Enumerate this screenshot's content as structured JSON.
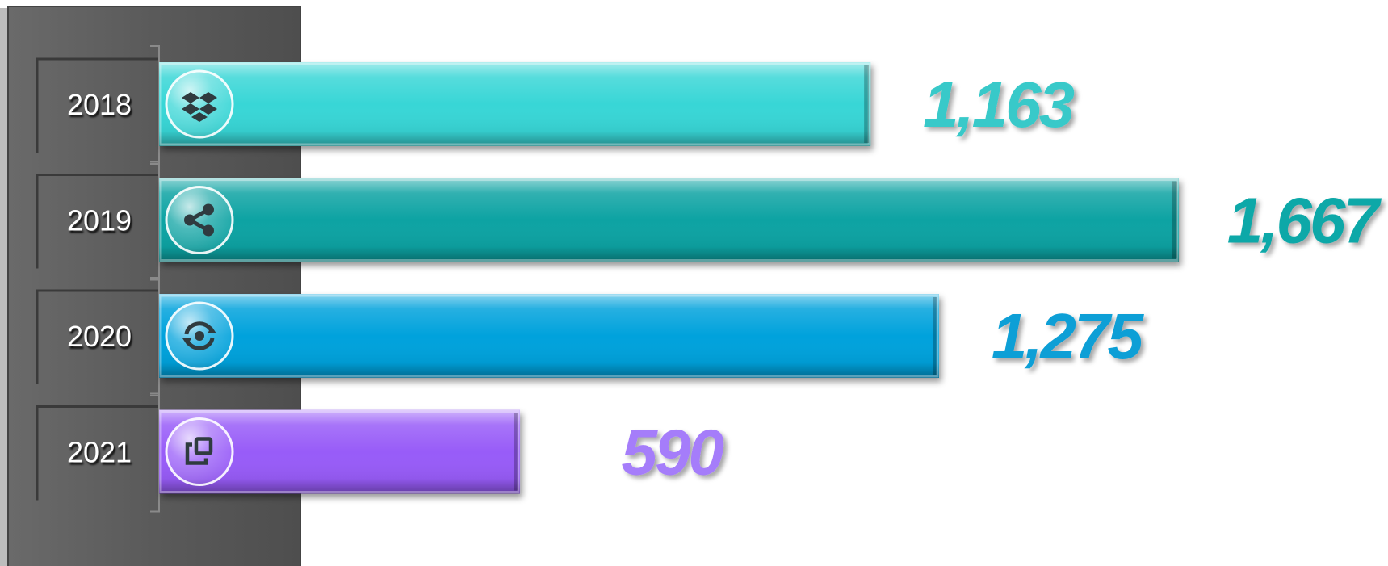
{
  "chart_data": {
    "type": "bar",
    "orientation": "horizontal",
    "title": "",
    "xlabel": "",
    "ylabel": "",
    "categories": [
      "2018",
      "2019",
      "2020",
      "2021"
    ],
    "values": [
      1163,
      1667,
      1275,
      590
    ],
    "value_labels": [
      "1,163",
      "1,667",
      "1,275",
      "590"
    ],
    "xlim": [
      0,
      1667
    ],
    "grid": false,
    "legend": "none",
    "bar_colors": [
      "#38d6d6",
      "#07a3a3",
      "#06a2dc",
      "#985cf8"
    ],
    "label_colors": [
      "#38c9c9",
      "#0aa8a8",
      "#0a9fd6",
      "#a57dfa"
    ],
    "icons": [
      "dropbox-icon",
      "share-icon",
      "sync-eye-icon",
      "copy-icon"
    ]
  },
  "theme": {
    "panel_color": "#585858",
    "panel_dark": "#3a3a3a",
    "icon_color": "#2f3b3f"
  }
}
